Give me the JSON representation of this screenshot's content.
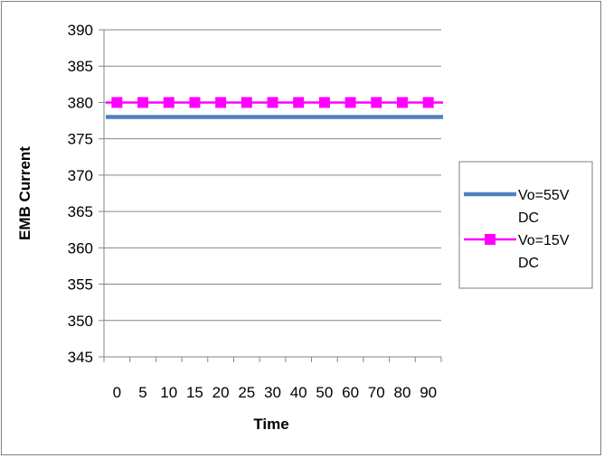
{
  "chart_data": {
    "type": "line",
    "title": "",
    "xlabel": "Time",
    "ylabel": "EMB Current",
    "categories": [
      "0",
      "5",
      "10",
      "15",
      "20",
      "25",
      "30",
      "40",
      "50",
      "60",
      "70",
      "80",
      "90"
    ],
    "ylim": [
      345,
      390
    ],
    "ytick_step": 5,
    "grid": true,
    "legend": "right",
    "series": [
      {
        "name": "Vo=55V DC",
        "name_lines": [
          "Vo=55V",
          "DC"
        ],
        "color": "#4f81bd",
        "marker": "none",
        "values": [
          378,
          378,
          378,
          378,
          378,
          378,
          378,
          378,
          378,
          378,
          378,
          378,
          378
        ]
      },
      {
        "name": "Vo=15V DC",
        "name_lines": [
          "Vo=15V",
          "DC"
        ],
        "color": "#ff00ff",
        "marker": "square",
        "values": [
          380,
          380,
          380,
          380,
          380,
          380,
          380,
          380,
          380,
          380,
          380,
          380,
          380
        ]
      }
    ]
  }
}
